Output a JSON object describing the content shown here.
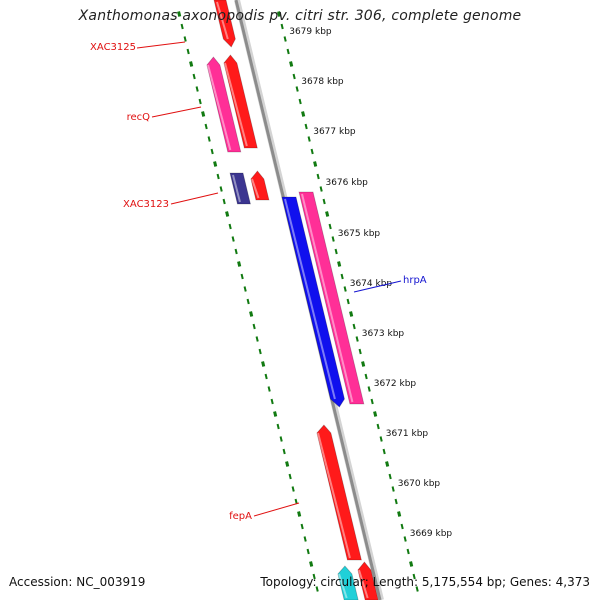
{
  "title": "Xanthomonas axonopodis pv. citri str. 306, complete genome",
  "footer": {
    "accession": "Accession: NC_003919",
    "summary": "Topology: circular; Length: 5,175,554 bp; Genes: 4,373"
  },
  "colors": {
    "forward_tick": "#117a11",
    "backbone": "#8c8c8c",
    "label_red": "#e01010",
    "label_blue": "#1515d0",
    "gene_red": "#ff1a1a",
    "gene_magenta": "#ff2f97",
    "gene_blue": "#1010ee",
    "gene_purple": "#3b3590",
    "gene_cyan": "#20d0d8"
  },
  "ticks": [
    {
      "label": "3679 kbp"
    },
    {
      "label": "3678 kbp"
    },
    {
      "label": "3677 kbp"
    },
    {
      "label": "3676 kbp"
    },
    {
      "label": "3675 kbp"
    },
    {
      "label": "3674 kbp"
    },
    {
      "label": "3673 kbp"
    },
    {
      "label": "3672 kbp"
    },
    {
      "label": "3671 kbp"
    },
    {
      "label": "3670 kbp"
    },
    {
      "label": "3669 kbp"
    }
  ],
  "gene_labels": [
    {
      "name": "XAC3125",
      "color": "red"
    },
    {
      "name": "recQ",
      "color": "red"
    },
    {
      "name": "XAC3123",
      "color": "red"
    },
    {
      "name": "hrpA",
      "color": "blue"
    },
    {
      "name": "fepA",
      "color": "red"
    }
  ],
  "genes": [
    {
      "name": "gene-red-top",
      "color": "gene_red",
      "strand": "forward"
    },
    {
      "name": "gene-recq-magenta",
      "color": "gene_magenta",
      "strand": "reverse"
    },
    {
      "name": "gene-recq-red",
      "color": "gene_red",
      "strand": "forward"
    },
    {
      "name": "gene-xac3123-purple",
      "color": "gene_purple",
      "strand": "reverse"
    },
    {
      "name": "gene-xac3123-red",
      "color": "gene_red",
      "strand": "forward"
    },
    {
      "name": "gene-hrpa-blue",
      "color": "gene_blue",
      "strand": "forward"
    },
    {
      "name": "gene-hrpa-magenta",
      "color": "gene_magenta",
      "strand": "forward"
    },
    {
      "name": "gene-fepa-red",
      "color": "gene_red",
      "strand": "forward"
    },
    {
      "name": "gene-bottom-cyan",
      "color": "gene_cyan",
      "strand": "forward"
    },
    {
      "name": "gene-bottom-red",
      "color": "gene_red",
      "strand": "forward"
    }
  ]
}
